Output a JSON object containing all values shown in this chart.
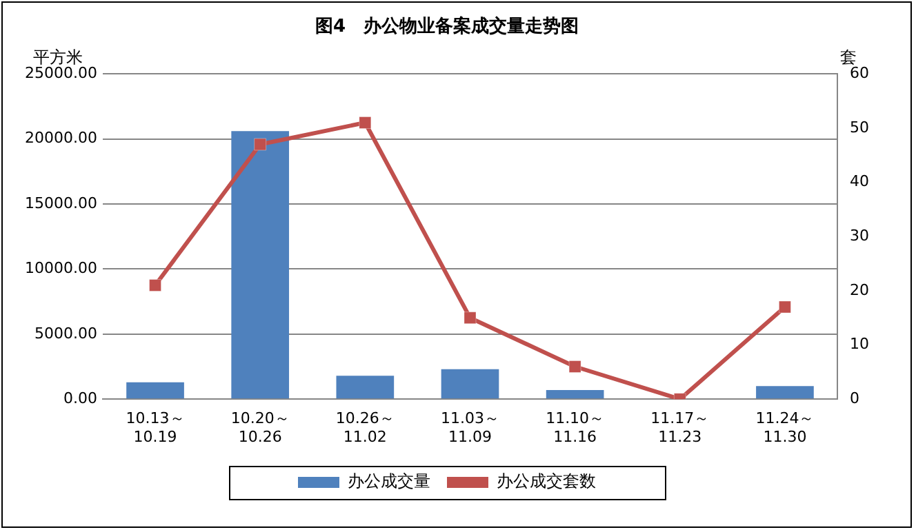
{
  "chart_data": {
    "type": "bar",
    "title": "图4　办公物业备案成交量走势图",
    "ylabel": "平方米",
    "y2label": "套",
    "categories": [
      "10.13～10.19",
      "10.20～10.26",
      "10.26～11.02",
      "11.03～11.09",
      "11.10～11.16",
      "11.17～11.23",
      "11.24～11.30"
    ],
    "series": [
      {
        "name": "办公成交量",
        "color": "#4f81bd",
        "values": [
          1300,
          20600,
          1800,
          2300,
          700,
          0,
          1000
        ]
      },
      {
        "name": "办公成交套数",
        "type": "line",
        "axis": "y2",
        "color": "#c0504d",
        "marker": "square",
        "values": [
          21,
          47,
          51,
          15,
          6,
          0,
          17
        ]
      }
    ],
    "ylim": [
      0,
      25000
    ],
    "yticks": [
      {
        "value": 0,
        "label": "0.00"
      },
      {
        "value": 5000,
        "label": "5000.00"
      },
      {
        "value": 10000,
        "label": "10000.00"
      },
      {
        "value": 15000,
        "label": "15000.00"
      },
      {
        "value": 20000,
        "label": "20000.00"
      },
      {
        "value": 25000,
        "label": "25000.00"
      }
    ],
    "y2lim": [
      0,
      60
    ],
    "y2ticks": [
      0,
      10,
      20,
      30,
      40,
      50,
      60
    ],
    "grid": "y",
    "legend": "bottom"
  }
}
